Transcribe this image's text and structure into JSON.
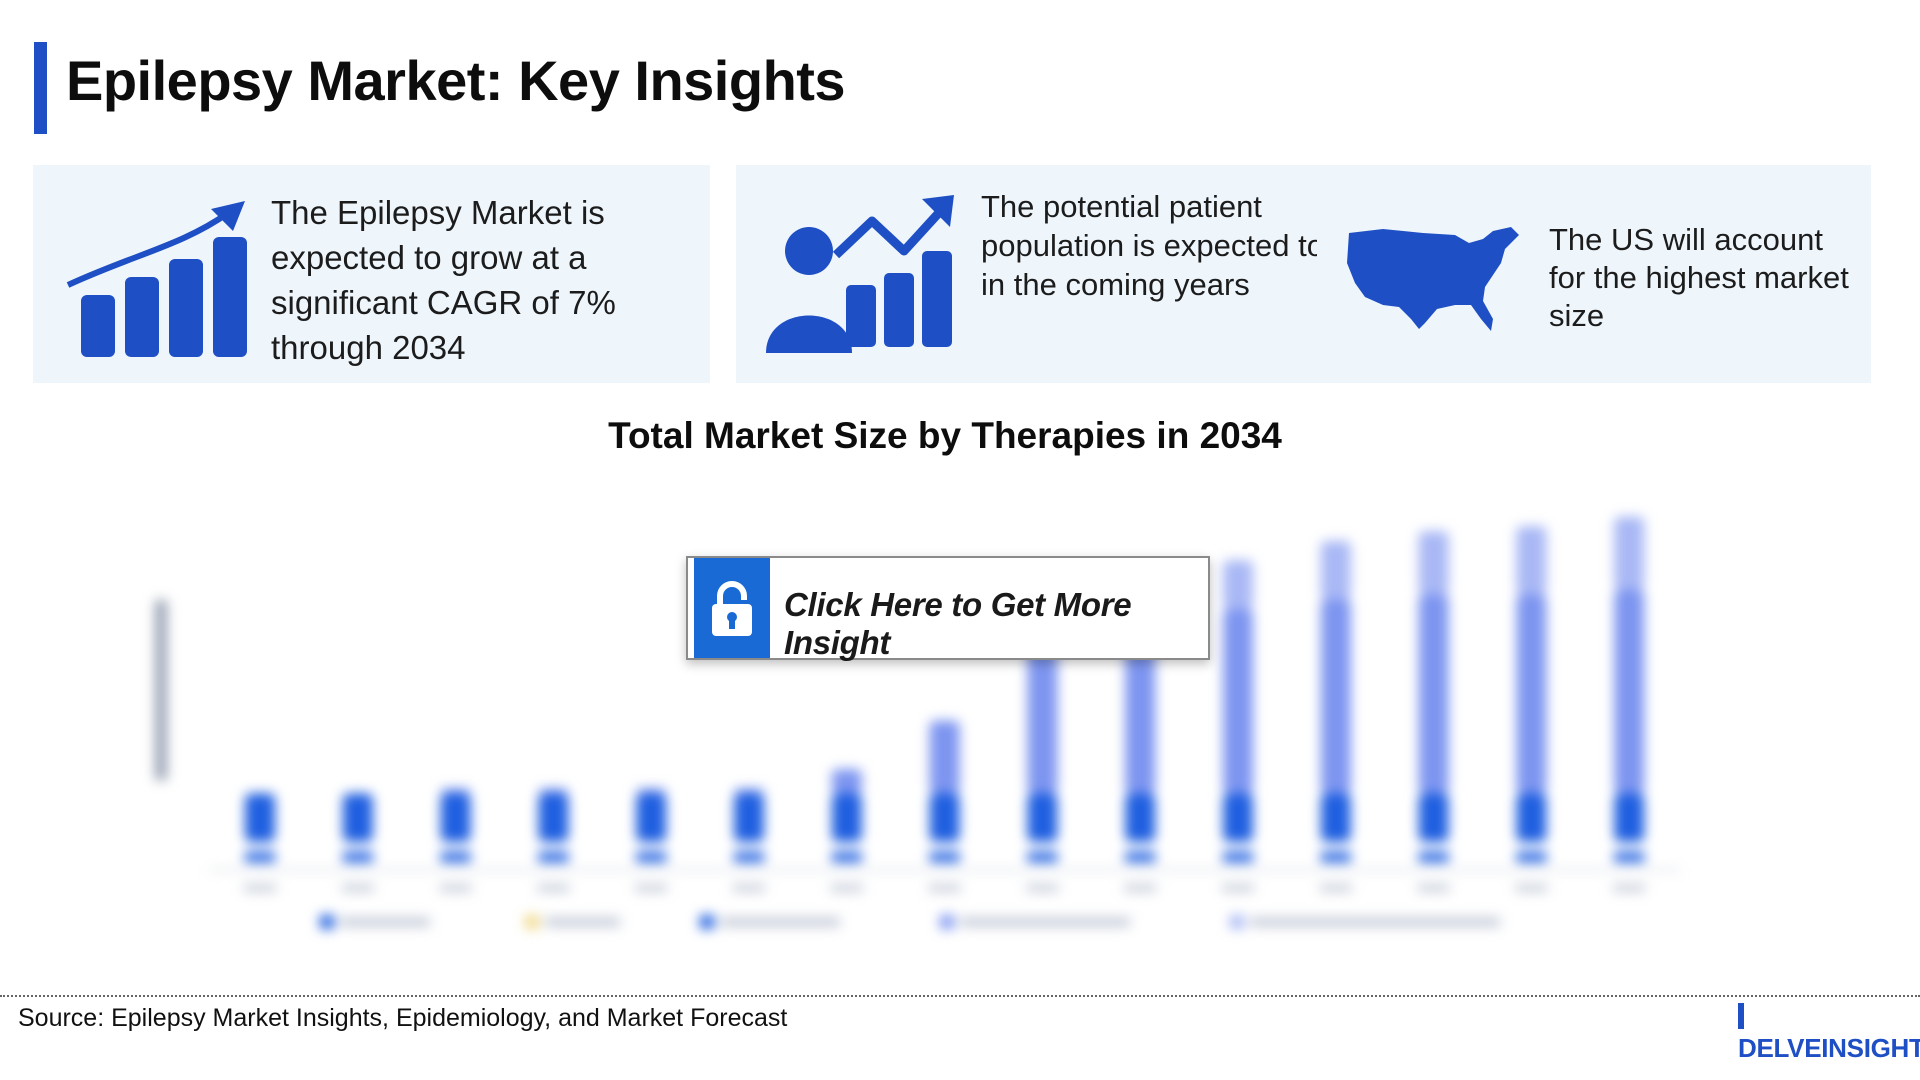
{
  "page": {
    "title": "Epilepsy Market: Key Insights",
    "accent_color": "#1f4fc4"
  },
  "cards": [
    {
      "icon": "growth-bar-chart-icon",
      "text": "The Epilepsy Market is expected to grow at a significant CAGR of 7% through 2034"
    },
    {
      "icon": "patient-growth-icon",
      "text": "The potential patient population is expected to grow in the coming years"
    },
    {
      "icon": "us-map-icon",
      "text": "The US will account for the highest market size"
    }
  ],
  "chart_data": {
    "type": "bar",
    "title": "Total Market Size by Therapies in 2034",
    "stacked": true,
    "blurred": true,
    "series_colors": [
      "#1f5fe0",
      "#7d95f0",
      "#a9b8f5"
    ],
    "series": [
      {
        "values": [
          10,
          10,
          10,
          10,
          10,
          10,
          10,
          10,
          10,
          10,
          10,
          10,
          10,
          10,
          10
        ]
      },
      {
        "values": [
          0,
          0,
          1,
          1,
          1,
          1,
          5,
          15,
          30,
          30,
          38,
          40,
          41,
          41,
          42
        ]
      },
      {
        "values": [
          0,
          0,
          0,
          0,
          0,
          0,
          0,
          0,
          0,
          0,
          10,
          12,
          13,
          14,
          15
        ]
      }
    ]
  },
  "cta": {
    "label": "Click Here to Get More Insight",
    "icon": "lock-icon"
  },
  "footer": {
    "source": "Source: Epilepsy Market Insights, Epidemiology, and Market Forecast",
    "logo": "DELVEINSIGHT"
  }
}
